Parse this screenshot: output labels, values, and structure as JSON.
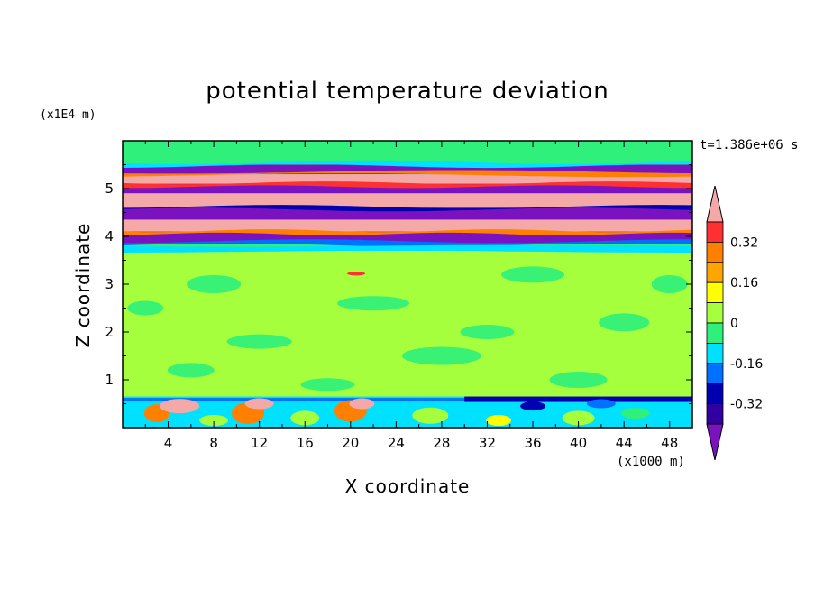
{
  "chart_data": {
    "type": "heatmap",
    "title": "potential temperature deviation",
    "xlabel": "X coordinate",
    "ylabel": "Z coordinate",
    "x_unit_label": "(x1000 m)",
    "y_unit_label": "(x1E4 m)",
    "timestamp_label": "t=1.386e+06 s",
    "xlim": [
      0,
      50
    ],
    "ylim": [
      0,
      6
    ],
    "x_ticks": [
      4,
      8,
      12,
      16,
      20,
      24,
      28,
      32,
      36,
      40,
      44,
      48
    ],
    "y_ticks": [
      1,
      2,
      3,
      4,
      5
    ],
    "colorbar": {
      "levels": [
        -0.4,
        -0.32,
        -0.24,
        -0.16,
        -0.08,
        0,
        0.08,
        0.16,
        0.24,
        0.32,
        0.4
      ],
      "tick_labels": [
        "0.32",
        "0.16",
        "0",
        "-0.16",
        "-0.32"
      ],
      "tick_values": [
        0.32,
        0.16,
        0,
        -0.16,
        -0.32
      ],
      "colors_top_to_bottom": [
        "#f4a8a8",
        "#ff3030",
        "#ff7f00",
        "#ffa500",
        "#ffff00",
        "#a6ff3c",
        "#2ef07a",
        "#00e0ff",
        "#0070ff",
        "#0000b0",
        "#3000a0",
        "#7b12c0"
      ],
      "extend": "both"
    },
    "bands": [
      {
        "z": [
          5.5,
          5.95
        ],
        "class": "0",
        "color": "#2ef07a"
      },
      {
        "z": [
          5.3,
          5.5
        ],
        "class": "-0.40",
        "color": "#7b12c0"
      },
      {
        "z": [
          5.1,
          5.3
        ],
        "class": "0.40",
        "color": "#f4a8a8"
      },
      {
        "z": [
          4.9,
          5.1
        ],
        "class": "-0.40",
        "color": "#7b12c0"
      },
      {
        "z": [
          4.6,
          4.9
        ],
        "class": "0.40",
        "color": "#f4a8a8"
      },
      {
        "z": [
          4.35,
          4.6
        ],
        "class": "-0.40",
        "color": "#7b12c0"
      },
      {
        "z": [
          4.1,
          4.35
        ],
        "class": "0.40",
        "color": "#f4a8a8"
      },
      {
        "z": [
          3.85,
          4.1
        ],
        "class": "-0.40",
        "color": "#7b12c0"
      },
      {
        "z": [
          0.65,
          3.7
        ],
        "class": "0.04",
        "color": "#a6ff3c"
      },
      {
        "z": [
          0,
          0.65
        ],
        "class": "mixed",
        "color": "#00e0ff"
      }
    ]
  }
}
